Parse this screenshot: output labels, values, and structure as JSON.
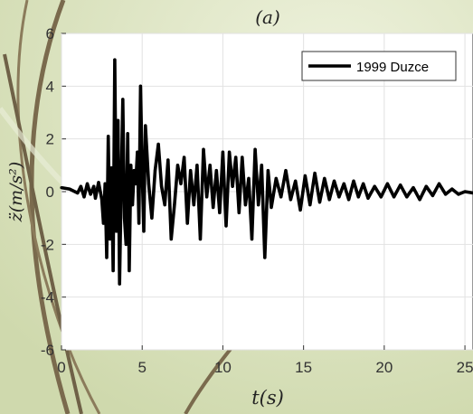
{
  "chart_data": {
    "type": "line",
    "title": "(a)",
    "xlabel": "t(s)",
    "ylabel": "z̈(m/s²)",
    "xlim": [
      0,
      25.5
    ],
    "ylim": [
      -6,
      6
    ],
    "xticks": [
      0,
      5,
      10,
      15,
      20,
      25
    ],
    "xtick_labels": [
      "0",
      "5",
      "10",
      "15",
      "20",
      "25"
    ],
    "yticks": [
      -6,
      -4,
      -2,
      0,
      2,
      4,
      6
    ],
    "ytick_labels": [
      "-6",
      "-4",
      "-2",
      "0",
      "2",
      "4",
      "6"
    ],
    "grid": true,
    "legend_position": "top-right",
    "series": [
      {
        "name": "1999 Duzce",
        "color": "#000000",
        "x": [
          0,
          0.5,
          1.0,
          1.2,
          1.4,
          1.6,
          1.8,
          2.0,
          2.1,
          2.3,
          2.5,
          2.6,
          2.7,
          2.8,
          2.9,
          3.0,
          3.1,
          3.2,
          3.3,
          3.4,
          3.5,
          3.6,
          3.7,
          3.8,
          3.9,
          4.0,
          4.1,
          4.2,
          4.3,
          4.4,
          4.5,
          4.6,
          4.7,
          4.8,
          4.9,
          5.0,
          5.1,
          5.2,
          5.4,
          5.6,
          5.8,
          6.0,
          6.2,
          6.4,
          6.6,
          6.8,
          7.0,
          7.2,
          7.4,
          7.6,
          7.8,
          8.0,
          8.2,
          8.4,
          8.6,
          8.8,
          9.0,
          9.2,
          9.4,
          9.6,
          9.8,
          10.0,
          10.2,
          10.4,
          10.6,
          10.8,
          11.0,
          11.2,
          11.4,
          11.6,
          11.8,
          12.0,
          12.2,
          12.4,
          12.6,
          12.8,
          13.0,
          13.3,
          13.6,
          13.9,
          14.2,
          14.5,
          14.8,
          15.1,
          15.4,
          15.7,
          16.0,
          16.3,
          16.6,
          16.9,
          17.2,
          17.5,
          17.8,
          18.1,
          18.4,
          18.7,
          19.0,
          19.4,
          19.8,
          20.2,
          20.6,
          21.0,
          21.4,
          21.8,
          22.2,
          22.6,
          23.0,
          23.4,
          23.8,
          24.2,
          24.6,
          25.0,
          25.5
        ],
        "values": [
          0.15,
          0.1,
          -0.05,
          0.2,
          -0.2,
          0.3,
          -0.1,
          0.2,
          -0.25,
          0.35,
          -0.3,
          -1.2,
          0.3,
          -2.5,
          2.1,
          -1.8,
          0.9,
          -3.0,
          5.0,
          -1.5,
          2.7,
          -3.5,
          0.2,
          3.5,
          -1.0,
          -2.0,
          2.2,
          -3.0,
          1.0,
          -0.5,
          0.8,
          0.3,
          1.5,
          -1.2,
          4.0,
          0.8,
          -1.5,
          2.5,
          0.3,
          -1.0,
          0.8,
          1.8,
          0.2,
          -0.5,
          1.2,
          -1.8,
          -0.5,
          1.0,
          0.3,
          1.3,
          -1.2,
          0.8,
          -0.5,
          1.0,
          -1.8,
          1.6,
          -0.2,
          1.0,
          -0.6,
          0.8,
          -0.8,
          1.5,
          -1.3,
          1.5,
          0.2,
          1.3,
          -0.8,
          1.3,
          -0.5,
          0.5,
          -1.8,
          1.6,
          -0.5,
          1.0,
          -2.5,
          0.8,
          -0.6,
          0.5,
          -0.2,
          0.8,
          -0.3,
          0.4,
          -0.7,
          0.6,
          -0.5,
          0.7,
          -0.4,
          0.5,
          -0.3,
          0.4,
          -0.2,
          0.3,
          -0.3,
          0.4,
          -0.2,
          0.3,
          -0.25,
          0.2,
          -0.2,
          0.3,
          -0.2,
          0.25,
          -0.2,
          0.15,
          -0.3,
          0.2,
          -0.15,
          0.3,
          -0.1,
          0.1,
          -0.1,
          0.0,
          -0.05
        ]
      }
    ]
  }
}
